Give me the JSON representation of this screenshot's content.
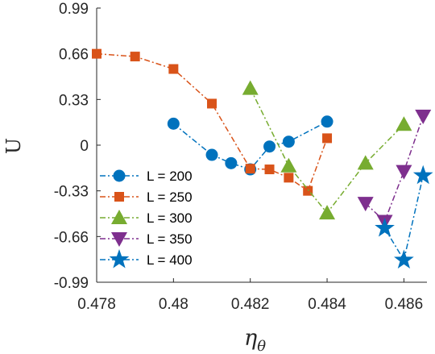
{
  "chart_data": {
    "type": "line",
    "title": "",
    "xlabel": "η",
    "xlabel_sub": "θ",
    "ylabel": "U",
    "xlim": [
      0.478,
      0.4866
    ],
    "ylim": [
      -0.99,
      0.99
    ],
    "xticks": [
      0.478,
      0.48,
      0.482,
      0.484,
      0.486
    ],
    "xtick_labels": [
      "0.478",
      "0.48",
      "0.482",
      "0.484",
      "0.486"
    ],
    "yticks": [
      0.99,
      0.66,
      0.33,
      0,
      -0.33,
      -0.66,
      -0.99
    ],
    "ytick_labels": [
      "0.99",
      "0.66",
      "0.33",
      "0",
      "-0.33",
      "-0.66",
      "-0.99"
    ],
    "grid": false,
    "legend_position": "bottom-left",
    "series": [
      {
        "name": "L = 200",
        "color": "#0072BD",
        "marker": "circle",
        "x": [
          0.48,
          0.481,
          0.4815,
          0.482,
          0.4825,
          0.483,
          0.484
        ],
        "y": [
          0.155,
          -0.07,
          -0.13,
          -0.175,
          -0.01,
          0.025,
          0.17
        ]
      },
      {
        "name": "L = 250",
        "color": "#D95319",
        "marker": "square",
        "x": [
          0.478,
          0.479,
          0.48,
          0.481,
          0.482,
          0.4825,
          0.483,
          0.4835,
          0.484
        ],
        "y": [
          0.66,
          0.64,
          0.55,
          0.3,
          -0.17,
          -0.175,
          -0.235,
          -0.33,
          0.05
        ]
      },
      {
        "name": "L = 300",
        "color": "#77AC30",
        "marker": "triangle-up",
        "x": [
          0.482,
          0.483,
          0.484,
          0.485,
          0.486
        ],
        "y": [
          0.41,
          -0.15,
          -0.49,
          -0.13,
          0.15
        ]
      },
      {
        "name": "L = 350",
        "color": "#7E2F8E",
        "marker": "triangle-down",
        "x": [
          0.485,
          0.4855,
          0.486,
          0.4865
        ],
        "y": [
          -0.42,
          -0.55,
          -0.19,
          0.21
        ]
      },
      {
        "name": "L = 400",
        "color": "#0072BD",
        "marker": "star",
        "x": [
          0.4855,
          0.486,
          0.4865
        ],
        "y": [
          -0.6,
          -0.83,
          -0.22
        ]
      }
    ]
  }
}
